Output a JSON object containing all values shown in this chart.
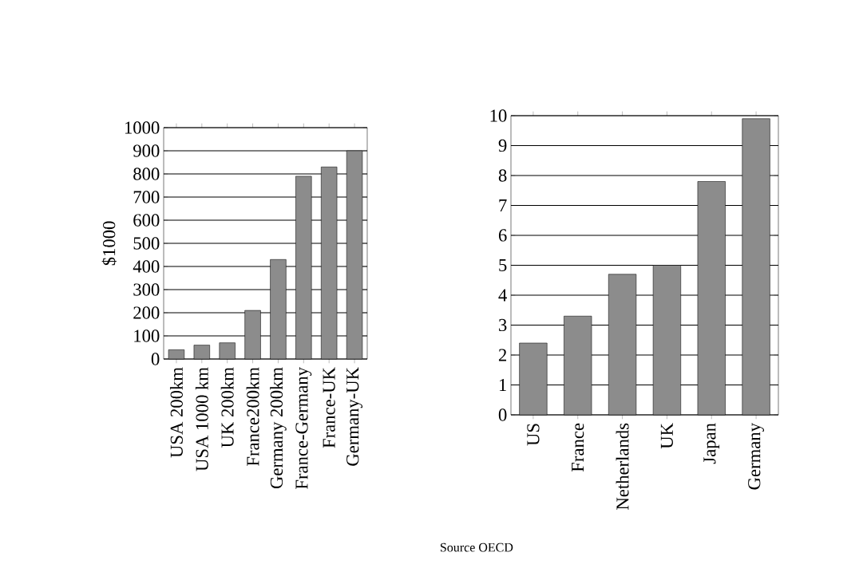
{
  "chart_data": [
    {
      "type": "bar",
      "ylabel": "$1000",
      "categories": [
        "USA 200km",
        "USA 1000 km",
        "UK 200km",
        "France200km",
        "Germany 200km",
        "France-Germany",
        "France-UK",
        "Germany-UK"
      ],
      "values": [
        40,
        60,
        70,
        210,
        430,
        790,
        830,
        900
      ],
      "color": "#8c8c8c",
      "ylim": [
        0,
        1000
      ],
      "yticks": [
        0,
        100,
        200,
        300,
        400,
        500,
        600,
        700,
        800,
        900,
        1000
      ],
      "grid": "y"
    },
    {
      "type": "bar",
      "categories": [
        "US",
        "France",
        "Netherlands",
        "UK",
        "Japan",
        "Germany"
      ],
      "values": [
        2.4,
        3.3,
        4.7,
        5.0,
        7.8,
        9.9
      ],
      "color": "#8c8c8c",
      "ylim": [
        0,
        10
      ],
      "yticks": [
        0,
        1,
        2,
        3,
        4,
        5,
        6,
        7,
        8,
        9,
        10
      ],
      "grid": "y",
      "annotations": [
        "Source OECD"
      ]
    }
  ]
}
